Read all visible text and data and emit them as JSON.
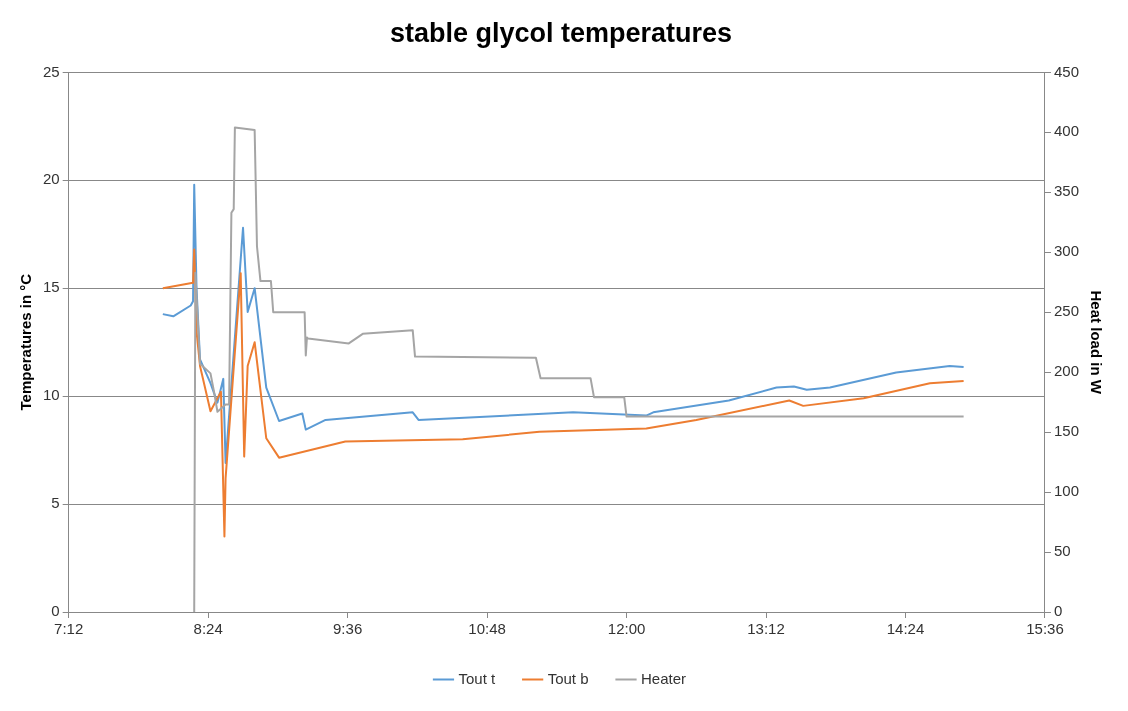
{
  "chart_data": {
    "type": "line",
    "title": "stable glycol temperatures",
    "ylabel": "Temperatures in °C",
    "y2label": "Heat load in W",
    "xlim": [
      7.2,
      15.6
    ],
    "xticks": [
      {
        "value": 7.2,
        "label": "7:12"
      },
      {
        "value": 8.4,
        "label": "8:24"
      },
      {
        "value": 9.6,
        "label": "9:36"
      },
      {
        "value": 10.8,
        "label": "10:48"
      },
      {
        "value": 12,
        "label": "12:00"
      },
      {
        "value": 13.2,
        "label": "13:12"
      },
      {
        "value": 14.4,
        "label": "14:24"
      },
      {
        "value": 15.6,
        "label": "15:36"
      }
    ],
    "ylim": [
      0,
      25
    ],
    "yticks": [
      0,
      5,
      10,
      15,
      20,
      25
    ],
    "y2lim": [
      0,
      450
    ],
    "y2ticks": [
      0,
      50,
      100,
      150,
      200,
      250,
      300,
      350,
      400,
      450
    ],
    "grid": "y",
    "legend": "bottom",
    "marker": "none",
    "line_style": "solid",
    "series": [
      {
        "name": "Tout t",
        "color": "#5b9bd5",
        "x": [
          8.01,
          8.1,
          8.25,
          8.27,
          8.28,
          8.3,
          8.33,
          8.42,
          8.48,
          8.53,
          8.55,
          8.7,
          8.74,
          8.8,
          8.9,
          9.01,
          9.21,
          9.24,
          9.41,
          10.16,
          10.21,
          11.54,
          12.17,
          12.23,
          12.88,
          13.29,
          13.44,
          13.55,
          13.75,
          14.32,
          14.78,
          14.9
        ],
        "values": [
          13.8,
          13.7,
          14.2,
          14.4,
          19.8,
          15,
          11.7,
          10.6,
          9.7,
          10.8,
          6.9,
          17.8,
          13.9,
          15,
          10.4,
          8.85,
          9.2,
          8.45,
          8.9,
          9.25,
          8.9,
          9.25,
          9.1,
          9.25,
          9.8,
          10.4,
          10.45,
          10.3,
          10.4,
          11.1,
          11.4,
          11.35
        ]
      },
      {
        "name": "Tout b",
        "color": "#ed7d31",
        "x": [
          8.01,
          8.27,
          8.28,
          8.3,
          8.33,
          8.42,
          8.51,
          8.54,
          8.55,
          8.68,
          8.71,
          8.74,
          8.8,
          8.9,
          9.01,
          9.58,
          10.59,
          11.25,
          12.17,
          12.6,
          13.4,
          13.52,
          14.04,
          14.61,
          14.9
        ],
        "values": [
          15,
          15.25,
          16.8,
          13,
          11.4,
          9.3,
          10.2,
          3.5,
          6.2,
          15.7,
          7.2,
          11.4,
          12.5,
          8.05,
          7.15,
          7.9,
          8,
          8.35,
          8.5,
          8.9,
          9.8,
          9.55,
          9.9,
          10.6,
          10.7
        ]
      },
      {
        "name": "Heater",
        "color": "#a5a5a5",
        "axis": "y2",
        "x": [
          8.28,
          8.29,
          8.33,
          8.42,
          8.45,
          8.48,
          8.55,
          8.58,
          8.6,
          8.62,
          8.63,
          8.8,
          8.82,
          8.85,
          8.94,
          8.96,
          9.23,
          9.24,
          9.25,
          9.26,
          9.61,
          9.73,
          10.16,
          10.18,
          11.22,
          11.26,
          11.69,
          11.72,
          11.98,
          12,
          14.9
        ],
        "values": [
          0,
          283,
          207,
          199,
          184,
          167,
          173,
          173,
          333,
          336,
          404,
          402,
          305,
          276,
          276,
          250,
          250,
          214,
          229,
          228,
          224,
          232,
          235,
          213,
          212,
          195,
          195,
          179,
          179,
          163,
          163
        ]
      }
    ]
  }
}
